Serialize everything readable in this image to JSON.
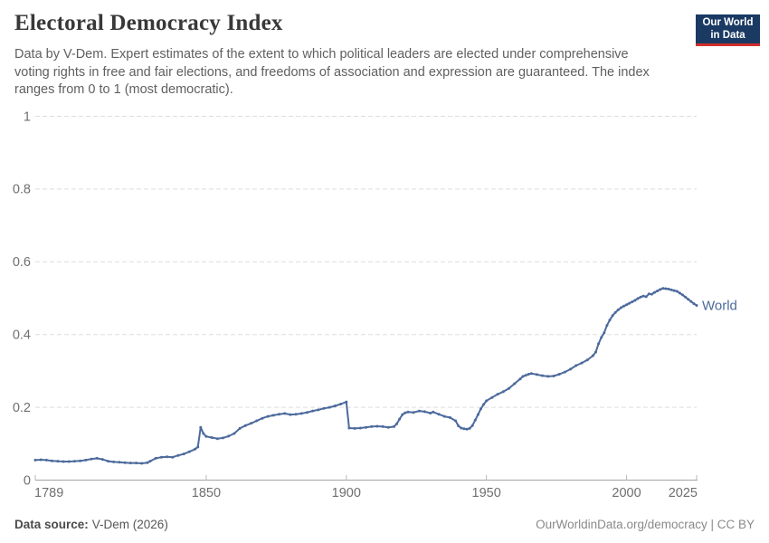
{
  "header": {
    "title": "Electoral Democracy Index",
    "subtitle": "Data by V-Dem. Expert estimates of the extent to which political leaders are elected under comprehensive voting rights in free and fair elections, and freedoms of association and expression are guaranteed. The index ranges from 0 to 1 (most democratic).",
    "logo": {
      "line1": "Our World",
      "line2": "in Data",
      "bg_color": "#1a3a63",
      "stripe_color": "#cf2e2b"
    }
  },
  "chart_data": {
    "type": "line",
    "title": "Electoral Democracy Index",
    "xlabel": "",
    "ylabel": "",
    "xlim": [
      1789,
      2025
    ],
    "ylim": [
      0,
      1
    ],
    "grid": "horizontal-dashed",
    "legend_position": "end-of-line",
    "axis_color": "#a3a3a3",
    "gridline_color": "#dedede",
    "tick_label_color": "#6f6f6f",
    "y_ticks": [
      {
        "value": 0,
        "label": "0"
      },
      {
        "value": 0.2,
        "label": "0.2"
      },
      {
        "value": 0.4,
        "label": "0.4"
      },
      {
        "value": 0.6,
        "label": "0.6"
      },
      {
        "value": 0.8,
        "label": "0.8"
      },
      {
        "value": 1,
        "label": "1"
      }
    ],
    "x_ticks": [
      {
        "value": 1789,
        "label": "1789"
      },
      {
        "value": 1850,
        "label": "1850"
      },
      {
        "value": 1900,
        "label": "1900"
      },
      {
        "value": 1950,
        "label": "1950"
      },
      {
        "value": 2000,
        "label": "2000"
      },
      {
        "value": 2025,
        "label": "2025"
      }
    ],
    "series": [
      {
        "name": "World",
        "color": "#4c6a9c",
        "points": [
          [
            1789,
            0.055
          ],
          [
            1791,
            0.056
          ],
          [
            1793,
            0.055
          ],
          [
            1795,
            0.053
          ],
          [
            1797,
            0.052
          ],
          [
            1799,
            0.051
          ],
          [
            1801,
            0.051
          ],
          [
            1803,
            0.052
          ],
          [
            1805,
            0.053
          ],
          [
            1807,
            0.055
          ],
          [
            1809,
            0.058
          ],
          [
            1811,
            0.06
          ],
          [
            1813,
            0.057
          ],
          [
            1815,
            0.052
          ],
          [
            1817,
            0.05
          ],
          [
            1819,
            0.049
          ],
          [
            1821,
            0.048
          ],
          [
            1823,
            0.047
          ],
          [
            1825,
            0.047
          ],
          [
            1827,
            0.046
          ],
          [
            1829,
            0.048
          ],
          [
            1830,
            0.052
          ],
          [
            1832,
            0.06
          ],
          [
            1834,
            0.063
          ],
          [
            1836,
            0.064
          ],
          [
            1838,
            0.063
          ],
          [
            1840,
            0.068
          ],
          [
            1842,
            0.072
          ],
          [
            1844,
            0.078
          ],
          [
            1846,
            0.085
          ],
          [
            1847,
            0.091
          ],
          [
            1848,
            0.145
          ],
          [
            1849,
            0.128
          ],
          [
            1850,
            0.12
          ],
          [
            1852,
            0.117
          ],
          [
            1854,
            0.114
          ],
          [
            1856,
            0.116
          ],
          [
            1858,
            0.121
          ],
          [
            1860,
            0.128
          ],
          [
            1862,
            0.142
          ],
          [
            1864,
            0.15
          ],
          [
            1866,
            0.156
          ],
          [
            1868,
            0.163
          ],
          [
            1870,
            0.17
          ],
          [
            1872,
            0.175
          ],
          [
            1874,
            0.178
          ],
          [
            1876,
            0.181
          ],
          [
            1878,
            0.183
          ],
          [
            1880,
            0.18
          ],
          [
            1882,
            0.181
          ],
          [
            1884,
            0.183
          ],
          [
            1886,
            0.186
          ],
          [
            1888,
            0.19
          ],
          [
            1890,
            0.193
          ],
          [
            1892,
            0.197
          ],
          [
            1894,
            0.2
          ],
          [
            1896,
            0.204
          ],
          [
            1898,
            0.209
          ],
          [
            1900,
            0.215
          ],
          [
            1901,
            0.143
          ],
          [
            1903,
            0.142
          ],
          [
            1905,
            0.143
          ],
          [
            1907,
            0.145
          ],
          [
            1909,
            0.147
          ],
          [
            1911,
            0.148
          ],
          [
            1913,
            0.147
          ],
          [
            1915,
            0.145
          ],
          [
            1917,
            0.147
          ],
          [
            1918,
            0.155
          ],
          [
            1919,
            0.168
          ],
          [
            1920,
            0.18
          ],
          [
            1921,
            0.185
          ],
          [
            1922,
            0.187
          ],
          [
            1924,
            0.186
          ],
          [
            1926,
            0.19
          ],
          [
            1928,
            0.188
          ],
          [
            1930,
            0.184
          ],
          [
            1931,
            0.187
          ],
          [
            1933,
            0.181
          ],
          [
            1935,
            0.175
          ],
          [
            1937,
            0.172
          ],
          [
            1939,
            0.163
          ],
          [
            1940,
            0.149
          ],
          [
            1941,
            0.143
          ],
          [
            1942,
            0.141
          ],
          [
            1943,
            0.14
          ],
          [
            1944,
            0.142
          ],
          [
            1945,
            0.15
          ],
          [
            1946,
            0.165
          ],
          [
            1947,
            0.18
          ],
          [
            1948,
            0.196
          ],
          [
            1949,
            0.208
          ],
          [
            1950,
            0.218
          ],
          [
            1952,
            0.227
          ],
          [
            1954,
            0.236
          ],
          [
            1956,
            0.243
          ],
          [
            1958,
            0.252
          ],
          [
            1960,
            0.265
          ],
          [
            1962,
            0.278
          ],
          [
            1963,
            0.285
          ],
          [
            1964,
            0.288
          ],
          [
            1965,
            0.291
          ],
          [
            1966,
            0.293
          ],
          [
            1968,
            0.29
          ],
          [
            1970,
            0.287
          ],
          [
            1972,
            0.285
          ],
          [
            1974,
            0.286
          ],
          [
            1976,
            0.291
          ],
          [
            1978,
            0.297
          ],
          [
            1980,
            0.305
          ],
          [
            1982,
            0.315
          ],
          [
            1984,
            0.322
          ],
          [
            1986,
            0.33
          ],
          [
            1988,
            0.342
          ],
          [
            1989,
            0.352
          ],
          [
            1990,
            0.375
          ],
          [
            1991,
            0.392
          ],
          [
            1992,
            0.405
          ],
          [
            1993,
            0.425
          ],
          [
            1994,
            0.44
          ],
          [
            1995,
            0.452
          ],
          [
            1996,
            0.461
          ],
          [
            1997,
            0.468
          ],
          [
            1998,
            0.474
          ],
          [
            1999,
            0.478
          ],
          [
            2000,
            0.482
          ],
          [
            2001,
            0.486
          ],
          [
            2002,
            0.49
          ],
          [
            2003,
            0.494
          ],
          [
            2004,
            0.499
          ],
          [
            2005,
            0.503
          ],
          [
            2006,
            0.506
          ],
          [
            2007,
            0.504
          ],
          [
            2008,
            0.512
          ],
          [
            2009,
            0.511
          ],
          [
            2010,
            0.516
          ],
          [
            2011,
            0.52
          ],
          [
            2012,
            0.524
          ],
          [
            2013,
            0.527
          ],
          [
            2014,
            0.526
          ],
          [
            2015,
            0.525
          ],
          [
            2016,
            0.523
          ],
          [
            2017,
            0.521
          ],
          [
            2018,
            0.519
          ],
          [
            2019,
            0.514
          ],
          [
            2020,
            0.509
          ],
          [
            2021,
            0.503
          ],
          [
            2022,
            0.497
          ],
          [
            2023,
            0.491
          ],
          [
            2024,
            0.485
          ],
          [
            2025,
            0.48
          ]
        ]
      }
    ]
  },
  "footer": {
    "source_label": "Data source:",
    "source_value": "V-Dem (2026)",
    "credit": "OurWorldinData.org/democracy | CC BY"
  }
}
